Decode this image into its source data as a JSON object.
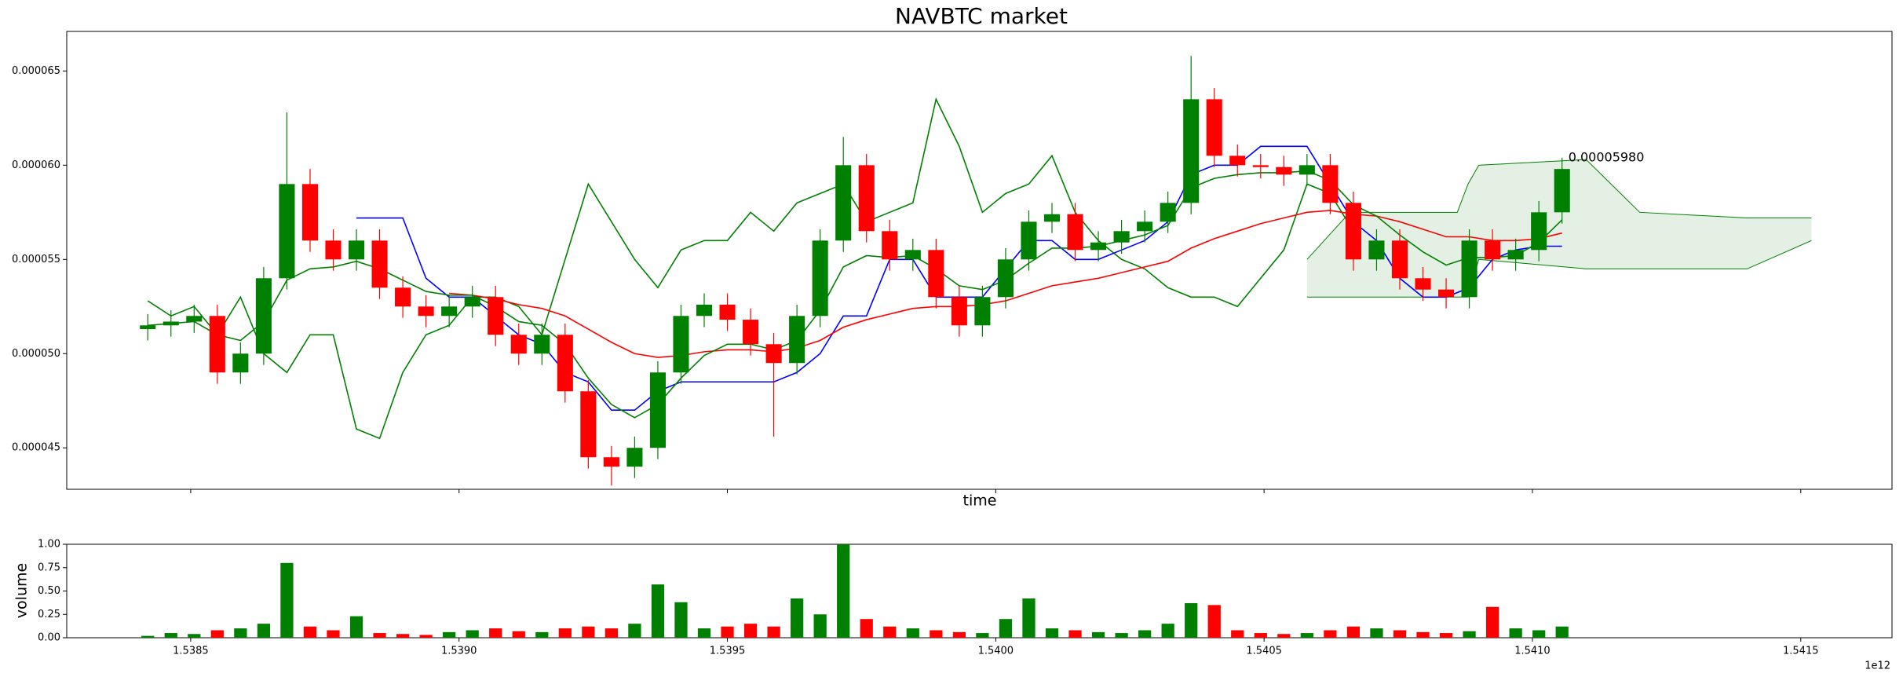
{
  "chart_data": [
    {
      "type": "candlestick",
      "title": "NAVBTC market",
      "xlabel": "time",
      "x": [
        1538420000000,
        1538463200000,
        1538506400000,
        1538549600000,
        1538592800000,
        1538636000000,
        1538679200000,
        1538722400000,
        1538765600000,
        1538808800000,
        1538852000000,
        1538895200000,
        1538938400000,
        1538981600000,
        1539024800000,
        1539068000000,
        1539111200000,
        1539154400000,
        1539197600000,
        1539240800000,
        1539284000000,
        1539327200000,
        1539370400000,
        1539413600000,
        1539456800000,
        1539500000000,
        1539543200000,
        1539586400000,
        1539629600000,
        1539672800000,
        1539716000000,
        1539759200000,
        1539802400000,
        1539845600000,
        1539888800000,
        1539932000000,
        1539975200000,
        1540018400000,
        1540061600000,
        1540104800000,
        1540148000000,
        1540191200000,
        1540234400000,
        1540277600000,
        1540320800000,
        1540364000000,
        1540407200000,
        1540450400000,
        1540493600000,
        1540536800000,
        1540580000000,
        1540623200000,
        1540666400000,
        1540709600000,
        1540752800000,
        1540796000000,
        1540839200000,
        1540882400000,
        1540925600000,
        1540968800000,
        1541012000000,
        1541055200000
      ],
      "open": [
        5.13e-05,
        5.15e-05,
        5.17e-05,
        5.2e-05,
        4.9e-05,
        5e-05,
        5.4e-05,
        5.9e-05,
        5.6e-05,
        5.5e-05,
        5.6e-05,
        5.35e-05,
        5.25e-05,
        5.2e-05,
        5.25e-05,
        5.3e-05,
        5.1e-05,
        5e-05,
        5.1e-05,
        4.8e-05,
        4.45e-05,
        4.4e-05,
        4.5e-05,
        4.9e-05,
        5.2e-05,
        5.26e-05,
        5.18e-05,
        5.05e-05,
        4.95e-05,
        5.2e-05,
        5.6e-05,
        6e-05,
        5.65e-05,
        5.5e-05,
        5.55e-05,
        5.3e-05,
        5.15e-05,
        5.3e-05,
        5.5e-05,
        5.7e-05,
        5.74e-05,
        5.55e-05,
        5.59e-05,
        5.65e-05,
        5.7e-05,
        5.8e-05,
        6.35e-05,
        6.05e-05,
        6e-05,
        5.99e-05,
        5.95e-05,
        6e-05,
        5.8e-05,
        5.5e-05,
        5.6e-05,
        5.4e-05,
        5.34e-05,
        5.3e-05,
        5.6e-05,
        5.5e-05,
        5.55e-05,
        5.75e-05
      ],
      "high": [
        5.21e-05,
        5.23e-05,
        5.26e-05,
        5.26e-05,
        5.06e-05,
        5.46e-05,
        6.28e-05,
        5.98e-05,
        5.66e-05,
        5.66e-05,
        5.66e-05,
        5.41e-05,
        5.31e-05,
        5.31e-05,
        5.36e-05,
        5.36e-05,
        5.16e-05,
        5.16e-05,
        5.16e-05,
        4.86e-05,
        4.51e-05,
        4.56e-05,
        4.96e-05,
        5.26e-05,
        5.32e-05,
        5.32e-05,
        5.24e-05,
        5.11e-05,
        5.26e-05,
        5.66e-05,
        6.15e-05,
        6.06e-05,
        5.71e-05,
        5.61e-05,
        5.61e-05,
        5.36e-05,
        5.36e-05,
        5.56e-05,
        5.76e-05,
        5.8e-05,
        5.8e-05,
        5.65e-05,
        5.71e-05,
        5.76e-05,
        5.86e-05,
        6.58e-05,
        6.41e-05,
        6.11e-05,
        6.06e-05,
        6.05e-05,
        6.06e-05,
        6.06e-05,
        5.86e-05,
        5.66e-05,
        5.66e-05,
        5.46e-05,
        5.4e-05,
        5.66e-05,
        5.66e-05,
        5.61e-05,
        5.81e-05,
        6.04e-05
      ],
      "low": [
        5.07e-05,
        5.09e-05,
        5.11e-05,
        4.84e-05,
        4.84e-05,
        4.94e-05,
        5.34e-05,
        5.54e-05,
        5.44e-05,
        5.44e-05,
        5.29e-05,
        5.19e-05,
        5.14e-05,
        5.14e-05,
        5.19e-05,
        5.04e-05,
        4.94e-05,
        4.94e-05,
        4.74e-05,
        4.39e-05,
        4.3e-05,
        4.34e-05,
        4.44e-05,
        4.84e-05,
        5.14e-05,
        5.12e-05,
        4.99e-05,
        4.56e-05,
        4.89e-05,
        5.14e-05,
        5.54e-05,
        5.59e-05,
        5.44e-05,
        5.44e-05,
        5.24e-05,
        5.09e-05,
        5.09e-05,
        5.24e-05,
        5.44e-05,
        5.64e-05,
        5.49e-05,
        5.49e-05,
        5.53e-05,
        5.59e-05,
        5.64e-05,
        5.74e-05,
        5.99e-05,
        5.94e-05,
        5.93e-05,
        5.89e-05,
        5.89e-05,
        5.74e-05,
        5.44e-05,
        5.44e-05,
        5.34e-05,
        5.28e-05,
        5.24e-05,
        5.24e-05,
        5.44e-05,
        5.44e-05,
        5.49e-05,
        5.69e-05
      ],
      "close": [
        5.15e-05,
        5.17e-05,
        5.2e-05,
        4.9e-05,
        5e-05,
        5.4e-05,
        5.9e-05,
        5.6e-05,
        5.5e-05,
        5.6e-05,
        5.35e-05,
        5.25e-05,
        5.2e-05,
        5.25e-05,
        5.3e-05,
        5.1e-05,
        5e-05,
        5.1e-05,
        4.8e-05,
        4.45e-05,
        4.4e-05,
        4.5e-05,
        4.9e-05,
        5.2e-05,
        5.26e-05,
        5.18e-05,
        5.05e-05,
        4.95e-05,
        5.2e-05,
        5.6e-05,
        6e-05,
        5.65e-05,
        5.5e-05,
        5.55e-05,
        5.3e-05,
        5.15e-05,
        5.3e-05,
        5.5e-05,
        5.7e-05,
        5.74e-05,
        5.55e-05,
        5.59e-05,
        5.65e-05,
        5.7e-05,
        5.8e-05,
        6.35e-05,
        6.05e-05,
        6e-05,
        5.99e-05,
        5.95e-05,
        6e-05,
        5.8e-05,
        5.5e-05,
        5.6e-05,
        5.4e-05,
        5.34e-05,
        5.3e-05,
        5.6e-05,
        5.5e-05,
        5.55e-05,
        5.75e-05,
        5.98e-05
      ],
      "up_color": "#008000",
      "down_color": "#ff0000",
      "lines": [
        {
          "color": "#008000",
          "values": [
            5.28e-05,
            5.2e-05,
            5.25e-05,
            5.1e-05,
            5.3e-05,
            5e-05,
            4.9e-05,
            5.1e-05,
            5.1e-05,
            4.6e-05,
            4.55e-05,
            4.9e-05,
            5.1e-05,
            5.15e-05,
            5.3e-05,
            5.3e-05,
            5.25e-05,
            5.1e-05,
            5.5e-05,
            5.9e-05,
            5.7e-05,
            5.5e-05,
            5.35e-05,
            5.55e-05,
            5.6e-05,
            5.6e-05,
            5.75e-05,
            5.65e-05,
            5.8e-05,
            5.85e-05,
            5.9e-05,
            5.7e-05,
            5.75e-05,
            5.8e-05,
            6.35e-05,
            6.1e-05,
            5.75e-05,
            5.85e-05,
            5.9e-05,
            6.05e-05,
            5.75e-05,
            5.6e-05,
            5.5e-05,
            5.45e-05,
            5.35e-05,
            5.3e-05,
            5.3e-05,
            5.25e-05,
            5.4e-05,
            5.55e-05,
            5.9e-05,
            5.85e-05,
            5.65e-05,
            null,
            null,
            null,
            null,
            null,
            null,
            null,
            null,
            null
          ]
        },
        {
          "color": "#0000ff",
          "values": [
            null,
            null,
            null,
            null,
            null,
            null,
            null,
            null,
            null,
            5.72e-05,
            5.72e-05,
            5.72e-05,
            5.4e-05,
            5.3e-05,
            5.3e-05,
            5.2e-05,
            5.1e-05,
            5.05e-05,
            4.9e-05,
            4.85e-05,
            4.7e-05,
            4.7e-05,
            4.8e-05,
            4.85e-05,
            4.85e-05,
            4.85e-05,
            4.85e-05,
            4.85e-05,
            4.9e-05,
            5e-05,
            5.2e-05,
            5.2e-05,
            5.5e-05,
            5.5e-05,
            5.3e-05,
            5.3e-05,
            5.3e-05,
            5.45e-05,
            5.6e-05,
            5.6e-05,
            5.5e-05,
            5.5e-05,
            5.55e-05,
            5.6e-05,
            5.7e-05,
            5.95e-05,
            6e-05,
            6e-05,
            6.1e-05,
            6.1e-05,
            6.1e-05,
            5.9e-05,
            5.7e-05,
            5.6e-05,
            5.4e-05,
            5.3e-05,
            5.3e-05,
            5.35e-05,
            5.5e-05,
            5.55e-05,
            5.57e-05,
            5.57e-05
          ]
        },
        {
          "color": "#ff0000",
          "values": [
            null,
            null,
            null,
            null,
            null,
            null,
            null,
            null,
            null,
            null,
            null,
            null,
            null,
            5.32e-05,
            5.31e-05,
            5.29e-05,
            5.26e-05,
            5.24e-05,
            5.2e-05,
            5.13e-05,
            5.06e-05,
            5e-05,
            4.98e-05,
            4.99e-05,
            5.01e-05,
            5.02e-05,
            5.02e-05,
            5.01e-05,
            5.03e-05,
            5.07e-05,
            5.14e-05,
            5.18e-05,
            5.21e-05,
            5.24e-05,
            5.25e-05,
            5.25e-05,
            5.26e-05,
            5.28e-05,
            5.32e-05,
            5.36e-05,
            5.38e-05,
            5.4e-05,
            5.43e-05,
            5.46e-05,
            5.49e-05,
            5.56e-05,
            5.61e-05,
            5.65e-05,
            5.69e-05,
            5.72e-05,
            5.75e-05,
            5.76e-05,
            5.74e-05,
            5.73e-05,
            5.7e-05,
            5.66e-05,
            5.62e-05,
            5.62e-05,
            5.6e-05,
            5.6e-05,
            5.61e-05,
            5.64e-05
          ]
        },
        {
          "color": "#008000",
          "values": [
            5.15e-05,
            5.16e-05,
            5.17e-05,
            5.1e-05,
            5.07e-05,
            5.17e-05,
            5.39e-05,
            5.45e-05,
            5.46e-05,
            5.49e-05,
            5.45e-05,
            5.39e-05,
            5.33e-05,
            5.31e-05,
            5.31e-05,
            5.25e-05,
            5.17e-05,
            5.15e-05,
            5.05e-05,
            4.87e-05,
            4.73e-05,
            4.66e-05,
            4.73e-05,
            4.87e-05,
            4.99e-05,
            5.05e-05,
            5.05e-05,
            5.02e-05,
            5.07e-05,
            5.23e-05,
            5.46e-05,
            5.52e-05,
            5.51e-05,
            5.52e-05,
            5.45e-05,
            5.36e-05,
            5.34e-05,
            5.39e-05,
            5.48e-05,
            5.56e-05,
            5.56e-05,
            5.57e-05,
            5.6e-05,
            5.63e-05,
            5.68e-05,
            5.88e-05,
            5.93e-05,
            5.95e-05,
            5.96e-05,
            5.96e-05,
            5.97e-05,
            5.92e-05,
            5.79e-05,
            5.73e-05,
            5.63e-05,
            5.54e-05,
            5.47e-05,
            5.51e-05,
            5.51e-05,
            5.52e-05,
            5.59e-05,
            5.71e-05
          ]
        }
      ],
      "cloud": {
        "color": "#008000",
        "fill": "#e3f0e3",
        "x": [
          1540580000000,
          1540660000000,
          1540760000000,
          1540860000000,
          1540880000000,
          1540900000000,
          1541100000000,
          1541200000000,
          1541400000000,
          1541520000000
        ],
        "upper": [
          5.5e-05,
          5.75e-05,
          5.75e-05,
          5.75e-05,
          5.9e-05,
          6e-05,
          6.03e-05,
          5.75e-05,
          5.72e-05,
          5.72e-05
        ],
        "lower": [
          5.3e-05,
          5.3e-05,
          5.3e-05,
          5.3e-05,
          5.3e-05,
          5.5e-05,
          5.45e-05,
          5.45e-05,
          5.45e-05,
          5.6e-05
        ]
      },
      "last_price_label": "0.00005980",
      "xlim": [
        1538269000000,
        1541670000000
      ],
      "xticks": [
        1538500000000,
        1539000000000,
        1539500000000,
        1540000000000,
        1540500000000,
        1541000000000,
        1541500000000
      ],
      "ylim": [
        4.28e-05,
        6.71e-05
      ],
      "yticks": [
        {
          "value": 4.5e-05,
          "label": "0.000045"
        },
        {
          "value": 5e-05,
          "label": "0.000050"
        },
        {
          "value": 5.5e-05,
          "label": "0.000055"
        },
        {
          "value": 6e-05,
          "label": "0.000060"
        },
        {
          "value": 6.5e-05,
          "label": "0.000065"
        }
      ]
    },
    {
      "type": "bar",
      "ylabel": "volume",
      "x_offset_label": "1e12",
      "values": [
        0.02,
        0.05,
        0.04,
        0.08,
        0.1,
        0.15,
        0.8,
        0.12,
        0.08,
        0.23,
        0.05,
        0.04,
        0.03,
        0.06,
        0.08,
        0.1,
        0.07,
        0.06,
        0.1,
        0.12,
        0.1,
        0.15,
        0.57,
        0.38,
        0.1,
        0.12,
        0.15,
        0.12,
        0.42,
        0.25,
        1.0,
        0.2,
        0.12,
        0.1,
        0.08,
        0.06,
        0.05,
        0.2,
        0.42,
        0.1,
        0.08,
        0.06,
        0.05,
        0.08,
        0.15,
        0.37,
        0.35,
        0.08,
        0.05,
        0.04,
        0.05,
        0.08,
        0.12,
        0.1,
        0.08,
        0.06,
        0.05,
        0.07,
        0.33,
        0.1,
        0.08,
        0.12
      ],
      "xlim": [
        1538269000000,
        1541670000000
      ],
      "xticks": [
        {
          "value": 1538500000000,
          "label": "1.5385"
        },
        {
          "value": 1539000000000,
          "label": "1.5390"
        },
        {
          "value": 1539500000000,
          "label": "1.5395"
        },
        {
          "value": 1540000000000,
          "label": "1.5400"
        },
        {
          "value": 1540500000000,
          "label": "1.5405"
        },
        {
          "value": 1541000000000,
          "label": "1.5410"
        },
        {
          "value": 1541500000000,
          "label": "1.5415"
        }
      ],
      "ylim": [
        0,
        1
      ],
      "yticks": [
        {
          "value": 0,
          "label": "0.00"
        },
        {
          "value": 0.25,
          "label": "0.25"
        },
        {
          "value": 0.5,
          "label": "0.50"
        },
        {
          "value": 0.75,
          "label": "0.75"
        },
        {
          "value": 1,
          "label": "1.00"
        }
      ]
    }
  ]
}
